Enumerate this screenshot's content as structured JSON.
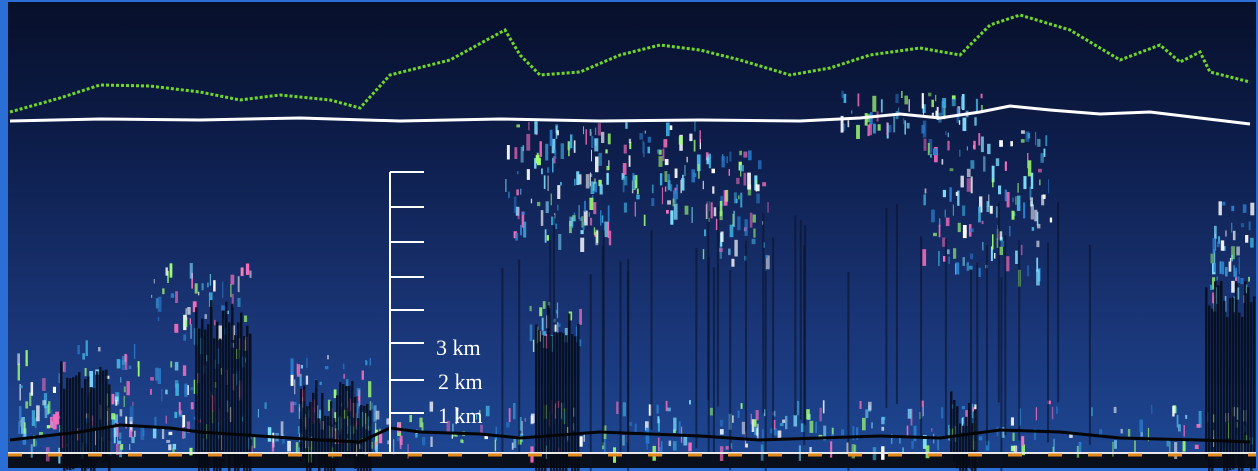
{
  "scale": {
    "labels": [
      "3 km",
      "2 km",
      "1 km"
    ]
  }
}
